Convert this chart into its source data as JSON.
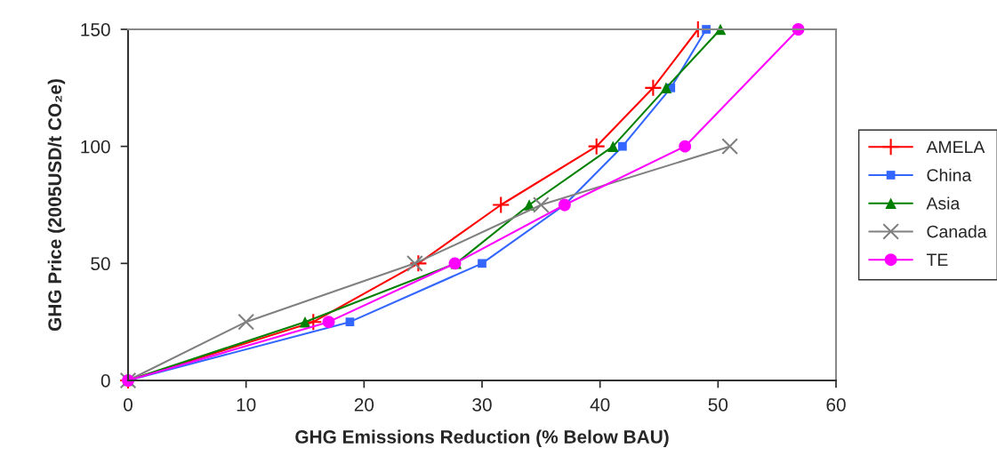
{
  "chart_data": {
    "type": "line",
    "xlabel": "GHG Emissions Reduction (% Below BAU)",
    "ylabel": "GHG Price (2005USD/t CO₂e)",
    "xlim": [
      0,
      60
    ],
    "xticks": [
      0,
      10,
      20,
      30,
      40,
      50,
      60
    ],
    "ylim": [
      0,
      150
    ],
    "yticks": [
      0,
      50,
      100,
      150
    ],
    "grid": false,
    "legend": "right",
    "line_style": "solid",
    "series": [
      {
        "name": "AMELA",
        "color": "#ff0000",
        "marker": "plus",
        "x": [
          0,
          15.7,
          24.6,
          31.6,
          39.7,
          44.5,
          48.3
        ],
        "values": [
          0,
          25,
          50,
          75,
          100,
          125,
          150
        ]
      },
      {
        "name": "China",
        "color": "#3366ff",
        "marker": "square",
        "x": [
          0,
          18.8,
          30,
          37,
          41.9,
          46,
          49
        ],
        "values": [
          0,
          25,
          50,
          75,
          100,
          125,
          150
        ]
      },
      {
        "name": "Asia",
        "color": "#008000",
        "marker": "triangle",
        "x": [
          0,
          15,
          27.8,
          34,
          41.1,
          45.6,
          50.2
        ],
        "values": [
          0,
          25,
          50,
          75,
          100,
          125,
          150
        ]
      },
      {
        "name": "Canada",
        "color": "#808080",
        "marker": "cross",
        "x": [
          0,
          10,
          24.3,
          35,
          51
        ],
        "values": [
          0,
          25,
          50,
          75,
          100
        ]
      },
      {
        "name": "TE",
        "color": "#ff00ff",
        "marker": "circle",
        "x": [
          0,
          17,
          27.7,
          37,
          47.2,
          56.8
        ],
        "values": [
          0,
          25,
          50,
          75,
          100,
          150
        ]
      }
    ]
  }
}
